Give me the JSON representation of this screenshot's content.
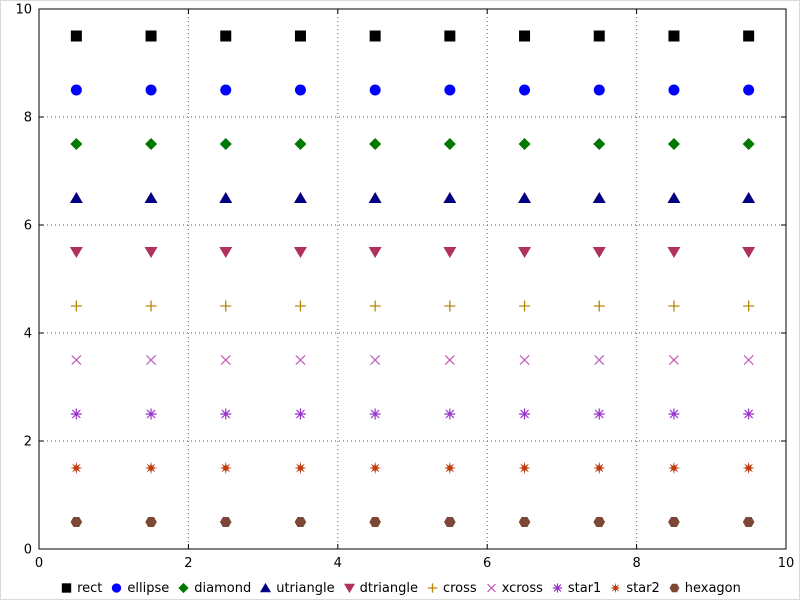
{
  "chart_data": {
    "type": "scatter",
    "title": "",
    "xlabel": "",
    "ylabel": "",
    "xlim": [
      0,
      10
    ],
    "ylim": [
      0,
      10
    ],
    "xticks": [
      0,
      2,
      4,
      6,
      8,
      10
    ],
    "yticks": [
      0,
      2,
      4,
      6,
      8,
      10
    ],
    "grid": "dotted",
    "legend_position": "bottom",
    "x_positions": [
      0.5,
      1.5,
      2.5,
      3.5,
      4.5,
      5.5,
      6.5,
      7.5,
      8.5,
      9.5
    ],
    "series": [
      {
        "name": "rect",
        "marker": "rect",
        "color": "#000000",
        "y": 9.5
      },
      {
        "name": "ellipse",
        "marker": "ellipse",
        "color": "#0000ff",
        "y": 8.5
      },
      {
        "name": "diamond",
        "marker": "diamond",
        "color": "#007700",
        "y": 7.5
      },
      {
        "name": "utriangle",
        "marker": "utriangle",
        "color": "#000080",
        "y": 6.5
      },
      {
        "name": "dtriangle",
        "marker": "dtriangle",
        "color": "#b03060",
        "y": 5.5
      },
      {
        "name": "cross",
        "marker": "cross",
        "color": "#b8860b",
        "y": 4.5
      },
      {
        "name": "xcross",
        "marker": "xcross",
        "color": "#c060c0",
        "y": 3.5
      },
      {
        "name": "star1",
        "marker": "star1",
        "color": "#9932cc",
        "y": 2.5
      },
      {
        "name": "star2",
        "marker": "star2",
        "color": "#c03c0c",
        "y": 1.5
      },
      {
        "name": "hexagon",
        "marker": "hexagon",
        "color": "#7d4735",
        "y": 0.5
      }
    ]
  },
  "axes": {
    "x_tick_labels": [
      "0",
      "2",
      "4",
      "6",
      "8",
      "10"
    ],
    "y_tick_labels": [
      "0",
      "2",
      "4",
      "6",
      "8",
      "10"
    ]
  }
}
